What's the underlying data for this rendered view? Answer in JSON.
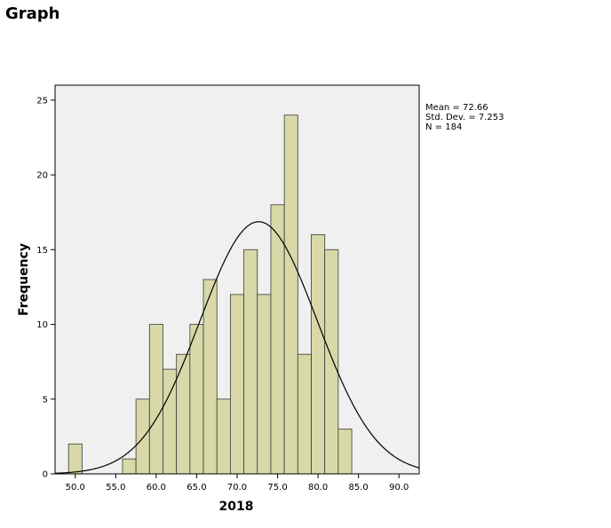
{
  "page": {
    "heading": "Graph"
  },
  "chart_data": {
    "type": "bar",
    "xlabel": "2018",
    "ylabel": "Frequency",
    "xlim": [
      47.5,
      92.5
    ],
    "ylim": [
      0,
      26
    ],
    "x_ticks": [
      50,
      55,
      60,
      65,
      70,
      75,
      80,
      85,
      90
    ],
    "x_tick_labels": [
      "50.0",
      "55.0",
      "60.0",
      "65.0",
      "70.0",
      "75.0",
      "80.0",
      "85.0",
      "90.0"
    ],
    "y_ticks": [
      0,
      5,
      10,
      15,
      20,
      25
    ],
    "y_tick_labels": [
      "0",
      "5",
      "10",
      "15",
      "20",
      "25"
    ],
    "bin_width": 1.6667,
    "bins": [
      {
        "x0": 49.1667,
        "count": 2
      },
      {
        "x0": 55.8333,
        "count": 1
      },
      {
        "x0": 57.5,
        "count": 5
      },
      {
        "x0": 59.1667,
        "count": 10
      },
      {
        "x0": 60.8333,
        "count": 7
      },
      {
        "x0": 62.5,
        "count": 8
      },
      {
        "x0": 64.1667,
        "count": 10
      },
      {
        "x0": 65.8333,
        "count": 13
      },
      {
        "x0": 67.5,
        "count": 5
      },
      {
        "x0": 69.1667,
        "count": 12
      },
      {
        "x0": 70.8333,
        "count": 15
      },
      {
        "x0": 72.5,
        "count": 12
      },
      {
        "x0": 74.1667,
        "count": 18
      },
      {
        "x0": 75.8333,
        "count": 24
      },
      {
        "x0": 77.5,
        "count": 8
      },
      {
        "x0": 79.1667,
        "count": 16
      },
      {
        "x0": 80.8333,
        "count": 15
      },
      {
        "x0": 82.5,
        "count": 3
      }
    ],
    "normal_curve": {
      "mean": 72.66,
      "std_dev": 7.253,
      "n": 184
    },
    "stats_text": [
      "Mean = 72.66",
      "Std. Dev. = 7.253",
      "N = 184"
    ],
    "colors": {
      "bar_fill": "#d8d8a8",
      "bar_stroke": "#3a3a3a",
      "plot_bg": "#f0f0f0",
      "curve": "#000000"
    },
    "grid": false,
    "legend_placement": "right"
  }
}
